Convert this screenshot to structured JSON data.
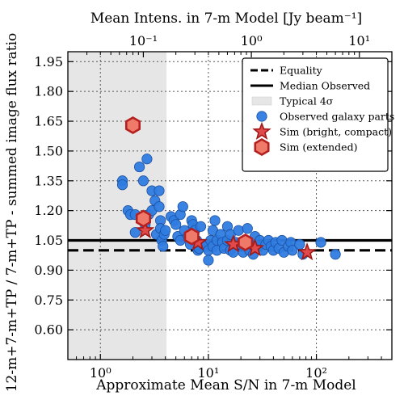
{
  "chart_data": {
    "type": "scatter",
    "xscale": "log",
    "xlim": [
      0.5,
      500
    ],
    "ylim": [
      0.45,
      2.0
    ],
    "grid": true,
    "xlabel": "Approximate Mean S/N in 7-m Model",
    "ylabel": "12-m+7-m+TP / 7-m+TP - summed image flux ratio",
    "top_axis": {
      "label": "Mean Intens. in 7-m Model [Jy beam⁻¹]",
      "ticks": [
        {
          "value": 2.5,
          "label": "10⁻¹"
        },
        {
          "value": 25,
          "label": "10⁰"
        },
        {
          "value": 250,
          "label": "10¹"
        }
      ]
    },
    "xticks": [
      {
        "value": 1,
        "label": "10⁰"
      },
      {
        "value": 10,
        "label": "10¹"
      },
      {
        "value": 100,
        "label": "10²"
      }
    ],
    "yticks": [
      0.6,
      0.75,
      0.9,
      1.05,
      1.2,
      1.35,
      1.5,
      1.65,
      1.8,
      1.95
    ],
    "ytick_labels": [
      "0.60",
      "0.75",
      "0.90",
      "1.05",
      "1.20",
      "1.35",
      "1.50",
      "1.65",
      "1.80",
      "1.95"
    ],
    "shaded_region": {
      "x_from": 0.5,
      "x_to": 4.1,
      "label": "Typical 4σ",
      "color": "#e6e6e6"
    },
    "lines": [
      {
        "name": "Equality",
        "y": 1.0,
        "style": "dashed",
        "color": "#000000"
      },
      {
        "name": "Median Observed",
        "y": 1.05,
        "style": "solid",
        "color": "#000000"
      }
    ],
    "series": [
      {
        "name": "Observed galaxy parts",
        "marker": "circle",
        "color": "#2f7ce0",
        "edge": "#1a4fa0",
        "points": [
          [
            1.6,
            1.35
          ],
          [
            1.6,
            1.33
          ],
          [
            1.8,
            1.2
          ],
          [
            1.9,
            1.18
          ],
          [
            2.1,
            1.09
          ],
          [
            2.1,
            1.18
          ],
          [
            2.3,
            1.42
          ],
          [
            2.5,
            1.35
          ],
          [
            2.6,
            1.13
          ],
          [
            2.7,
            1.46
          ],
          [
            2.8,
            1.18
          ],
          [
            3.0,
            1.3
          ],
          [
            3.0,
            1.2
          ],
          [
            3.2,
            1.25
          ],
          [
            3.3,
            1.08
          ],
          [
            3.5,
            1.3
          ],
          [
            3.5,
            1.22
          ],
          [
            3.6,
            1.15
          ],
          [
            3.6,
            1.11
          ],
          [
            3.7,
            1.05
          ],
          [
            3.8,
            1.02
          ],
          [
            3.9,
            1.08
          ],
          [
            4.0,
            1.1
          ],
          [
            4.5,
            1.17
          ],
          [
            4.8,
            1.15
          ],
          [
            5.0,
            1.13
          ],
          [
            5.2,
            1.07
          ],
          [
            5.5,
            1.05
          ],
          [
            5.5,
            1.18
          ],
          [
            5.8,
            1.22
          ],
          [
            6.0,
            1.1
          ],
          [
            6.5,
            1.07
          ],
          [
            6.8,
            1.03
          ],
          [
            7.0,
            1.15
          ],
          [
            7.2,
            1.13
          ],
          [
            7.5,
            1.1
          ],
          [
            7.8,
            1.05
          ],
          [
            8.0,
            1.0
          ],
          [
            8.2,
            1.01
          ],
          [
            8.5,
            1.12
          ],
          [
            9.0,
            1.03
          ],
          [
            9.5,
            1.02
          ],
          [
            10,
            0.95
          ],
          [
            10,
            1.0
          ],
          [
            10.5,
            1.05
          ],
          [
            11,
            1.1
          ],
          [
            11,
            1.02
          ],
          [
            11.5,
            1.15
          ],
          [
            12,
            1.05
          ],
          [
            12,
            1.0
          ],
          [
            13,
            1.08
          ],
          [
            13.5,
            1.04
          ],
          [
            14,
            1.01
          ],
          [
            15,
            1.05
          ],
          [
            15,
            1.12
          ],
          [
            16,
            1.0
          ],
          [
            16,
            1.08
          ],
          [
            17,
            0.99
          ],
          [
            18,
            1.04
          ],
          [
            19,
            1.1
          ],
          [
            20,
            1.03
          ],
          [
            21,
            0.99
          ],
          [
            22,
            1.05
          ],
          [
            23,
            1.11
          ],
          [
            24,
            1.0
          ],
          [
            25,
            1.03
          ],
          [
            26,
            0.98
          ],
          [
            27,
            1.07
          ],
          [
            28,
            1.02
          ],
          [
            30,
            1.05
          ],
          [
            32,
            1.0
          ],
          [
            34,
            1.03
          ],
          [
            36,
            1.05
          ],
          [
            38,
            1.02
          ],
          [
            40,
            1.0
          ],
          [
            42,
            1.04
          ],
          [
            45,
            1.01
          ],
          [
            48,
            1.05
          ],
          [
            50,
            0.99
          ],
          [
            55,
            1.02
          ],
          [
            58,
            1.04
          ],
          [
            60,
            1.0
          ],
          [
            70,
            1.03
          ],
          [
            75,
            0.98
          ],
          [
            110,
            1.04
          ],
          [
            150,
            0.98
          ]
        ]
      },
      {
        "name": "Sim (bright, compact)",
        "marker": "star",
        "color": "#e04a4a",
        "edge": "#a01818",
        "points": [
          [
            2.6,
            1.1
          ],
          [
            8.0,
            1.04
          ],
          [
            17,
            1.03
          ],
          [
            27,
            1.01
          ],
          [
            82,
            0.99
          ]
        ]
      },
      {
        "name": "Sim (extended)",
        "marker": "hexagon",
        "color": "#f07a6a",
        "edge": "#b52020",
        "points": [
          [
            2.0,
            1.63
          ],
          [
            2.5,
            1.16
          ],
          [
            7.0,
            1.07
          ],
          [
            22,
            1.04
          ]
        ]
      }
    ],
    "legend": {
      "position": "top-right"
    }
  }
}
